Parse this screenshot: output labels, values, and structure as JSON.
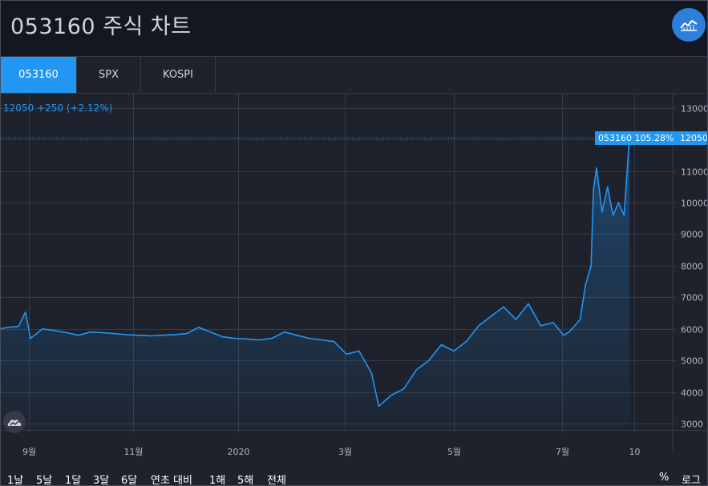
{
  "header": {
    "title": "053160 주식 차트",
    "chart_button_icon": "line-chart-icon"
  },
  "tabs": [
    {
      "label": "053160",
      "active": true
    },
    {
      "label": "SPX",
      "active": false
    },
    {
      "label": "KOSPI",
      "active": false
    }
  ],
  "quote": {
    "last": "12050",
    "change": "+250",
    "change_pct": "(+2.12%)"
  },
  "last_badge": {
    "series_label": "053160 105.28%",
    "price_label": "12050"
  },
  "range_buttons": [
    "1날",
    "5날",
    "1달",
    "3달",
    "6달",
    "연초 대비",
    "1해",
    "5해",
    "전체"
  ],
  "scale_buttons": [
    "%",
    "로그"
  ],
  "colors": {
    "line": "#2196f3",
    "background": "#1e222d",
    "header_bg": "#131722",
    "grid": "#363a45",
    "accent": "#2196f3"
  },
  "chart_data": {
    "type": "area",
    "series": [
      {
        "name": "053160",
        "points": [
          [
            "2019-08-12",
            5980
          ],
          [
            "2019-08-19",
            6040
          ],
          [
            "2019-08-26",
            6080
          ],
          [
            "2019-08-30",
            6530
          ],
          [
            "2019-09-02",
            5700
          ],
          [
            "2019-09-09",
            6000
          ],
          [
            "2019-09-16",
            5950
          ],
          [
            "2019-09-23",
            5880
          ],
          [
            "2019-09-30",
            5800
          ],
          [
            "2019-10-07",
            5900
          ],
          [
            "2019-10-14",
            5880
          ],
          [
            "2019-10-21",
            5850
          ],
          [
            "2019-10-28",
            5820
          ],
          [
            "2019-11-04",
            5800
          ],
          [
            "2019-11-11",
            5780
          ],
          [
            "2019-11-18",
            5800
          ],
          [
            "2019-11-25",
            5820
          ],
          [
            "2019-12-02",
            5850
          ],
          [
            "2019-12-09",
            6050
          ],
          [
            "2019-12-16",
            5900
          ],
          [
            "2019-12-23",
            5750
          ],
          [
            "2019-12-30",
            5700
          ],
          [
            "2020-01-06",
            5680
          ],
          [
            "2020-01-13",
            5650
          ],
          [
            "2020-01-20",
            5700
          ],
          [
            "2020-01-27",
            5900
          ],
          [
            "2020-02-03",
            5800
          ],
          [
            "2020-02-10",
            5700
          ],
          [
            "2020-02-17",
            5650
          ],
          [
            "2020-02-24",
            5600
          ],
          [
            "2020-03-02",
            5200
          ],
          [
            "2020-03-09",
            5300
          ],
          [
            "2020-03-16",
            4600
          ],
          [
            "2020-03-20",
            3550
          ],
          [
            "2020-03-27",
            3900
          ],
          [
            "2020-04-03",
            4100
          ],
          [
            "2020-04-10",
            4700
          ],
          [
            "2020-04-17",
            5000
          ],
          [
            "2020-04-24",
            5500
          ],
          [
            "2020-05-01",
            5300
          ],
          [
            "2020-05-08",
            5600
          ],
          [
            "2020-05-15",
            6100
          ],
          [
            "2020-05-22",
            6400
          ],
          [
            "2020-05-29",
            6700
          ],
          [
            "2020-06-05",
            6300
          ],
          [
            "2020-06-12",
            6800
          ],
          [
            "2020-06-19",
            6100
          ],
          [
            "2020-06-26",
            6200
          ],
          [
            "2020-07-03",
            5800
          ],
          [
            "2020-07-10",
            5900
          ],
          [
            "2020-07-17",
            6100
          ],
          [
            "2020-07-24",
            6300
          ],
          [
            "2020-07-31",
            7400
          ],
          [
            "2020-08-07",
            8000
          ],
          [
            "2020-08-10",
            10400
          ],
          [
            "2020-08-14",
            11100
          ],
          [
            "2020-08-21",
            9700
          ],
          [
            "2020-08-28",
            10500
          ],
          [
            "2020-09-04",
            9600
          ],
          [
            "2020-09-11",
            10000
          ],
          [
            "2020-09-18",
            9600
          ],
          [
            "2020-09-25",
            12050
          ]
        ]
      }
    ],
    "x_tick_labels": [
      "9월",
      "11월",
      "2020",
      "3월",
      "5월",
      "7월",
      "10"
    ],
    "y_ticks": [
      3000,
      4000,
      5000,
      6000,
      7000,
      8000,
      9000,
      10000,
      11000,
      12000,
      13000
    ],
    "ylim": [
      2800,
      13450
    ],
    "grid": true,
    "last_value": 12050
  }
}
